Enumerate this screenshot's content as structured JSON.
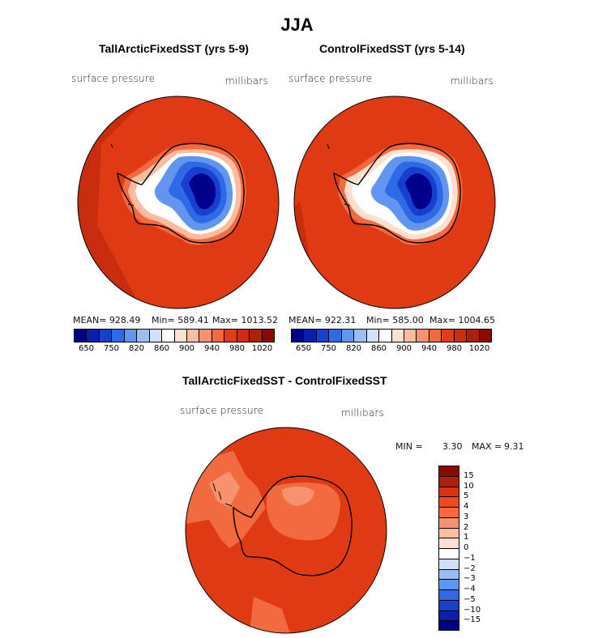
{
  "season": "JJA",
  "panels": {
    "left": {
      "title": "TallArcticFixedSST (yrs 5-9)",
      "var": "surface pressure",
      "units": "millibars",
      "stats": {
        "mean": "MEAN= 928.49",
        "min": "Min= 589.41",
        "max": "Max= 1013.52"
      }
    },
    "right": {
      "title": "ControlFixedSST (yrs 5-14)",
      "var": "surface pressure",
      "units": "millibars",
      "stats": {
        "mean": "MEAN= 922.31",
        "min": "Min= 585.00",
        "max": "Max= 1004.65"
      }
    },
    "diff": {
      "title": "TallArcticFixedSST - ControlFixedSST",
      "var": "surface pressure",
      "units": "millibars",
      "min_label": "MIN =",
      "min_value": "3.30",
      "max_label": "MAX =",
      "max_value": "9.31"
    }
  },
  "colorbar_top": {
    "colors": [
      "#00008b",
      "#0a1fb0",
      "#1740d0",
      "#2f6ae6",
      "#6295ef",
      "#9bbdf3",
      "#cfe0f8",
      "#ffffff",
      "#fde0cf",
      "#fbbca0",
      "#f7926e",
      "#f26a40",
      "#e43a1a",
      "#d02d10",
      "#b02008",
      "#8b0a00"
    ],
    "labels": [
      "650",
      "750",
      "820",
      "860",
      "900",
      "940",
      "980",
      "1020"
    ]
  },
  "colorbar_diff": {
    "colors": [
      "#8b0a00",
      "#b02008",
      "#d83210",
      "#ec4a1f",
      "#f26a40",
      "#f7926e",
      "#fbbca0",
      "#fde0cf",
      "#ffffff",
      "#cfe0f8",
      "#9bbdf3",
      "#6295ef",
      "#2f6ae6",
      "#1740d0",
      "#0a1fb0",
      "#00008b"
    ],
    "labels": [
      "15",
      "10",
      "5",
      "4",
      "3",
      "2",
      "1",
      "0",
      "−1",
      "−2",
      "−3",
      "−4",
      "−5",
      "−10",
      "−15"
    ]
  }
}
